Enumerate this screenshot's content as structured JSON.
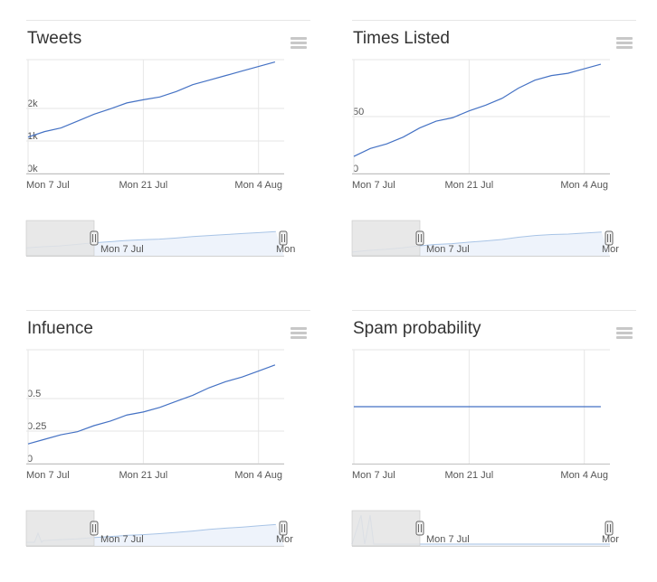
{
  "chart_data": [
    {
      "type": "line",
      "title": "Tweets",
      "x_tick_labels": [
        "Mon 7 Jul",
        "Mon 21 Jul",
        "Mon 4 Aug"
      ],
      "y_tick_labels": [
        "0k",
        "1k",
        "2k"
      ],
      "ylim": [
        0,
        2500
      ],
      "series": [
        {
          "x": [
            "2014-07-07",
            "2014-07-09",
            "2014-07-11",
            "2014-07-13",
            "2014-07-15",
            "2014-07-17",
            "2014-07-19",
            "2014-07-21",
            "2014-07-23",
            "2014-07-25",
            "2014-07-27",
            "2014-07-29",
            "2014-07-31",
            "2014-08-02",
            "2014-08-04",
            "2014-08-06"
          ],
          "y": [
            800,
            920,
            1000,
            1150,
            1300,
            1420,
            1550,
            1620,
            1680,
            1800,
            1950,
            2050,
            2150,
            2250,
            2350,
            2450
          ]
        }
      ],
      "navigator": {
        "labels": [
          "Mon 7 Jul",
          "Mon"
        ]
      }
    },
    {
      "type": "line",
      "title": "Times Listed",
      "x_tick_labels": [
        "Mon 7 Jul",
        "Mon 21 Jul",
        "Mon 4 Aug"
      ],
      "y_tick_labels": [
        "0",
        "50"
      ],
      "ylim": [
        0,
        100
      ],
      "series": [
        {
          "x": [
            "2014-07-07",
            "2014-07-09",
            "2014-07-11",
            "2014-07-13",
            "2014-07-15",
            "2014-07-17",
            "2014-07-19",
            "2014-07-21",
            "2014-07-23",
            "2014-07-25",
            "2014-07-27",
            "2014-07-29",
            "2014-07-31",
            "2014-08-02",
            "2014-08-04",
            "2014-08-06"
          ],
          "y": [
            15,
            22,
            26,
            32,
            40,
            46,
            49,
            55,
            60,
            66,
            75,
            82,
            86,
            88,
            92,
            96
          ]
        }
      ],
      "navigator": {
        "labels": [
          "Mon 7 Jul",
          "Mor"
        ]
      }
    },
    {
      "type": "line",
      "title": "Infuence",
      "x_tick_labels": [
        "Mon 7 Jul",
        "Mon 21 Jul",
        "Mon 4 Aug"
      ],
      "y_tick_labels": [
        "0",
        "0.25",
        "0.5"
      ],
      "ylim": [
        0,
        0.75
      ],
      "series": [
        {
          "x": [
            "2014-07-07",
            "2014-07-09",
            "2014-07-11",
            "2014-07-13",
            "2014-07-15",
            "2014-07-17",
            "2014-07-19",
            "2014-07-21",
            "2014-07-23",
            "2014-07-25",
            "2014-07-27",
            "2014-07-29",
            "2014-07-31",
            "2014-08-02",
            "2014-08-04",
            "2014-08-06"
          ],
          "y": [
            0.13,
            0.16,
            0.19,
            0.21,
            0.25,
            0.28,
            0.32,
            0.34,
            0.37,
            0.41,
            0.45,
            0.5,
            0.54,
            0.57,
            0.61,
            0.65
          ]
        }
      ],
      "navigator": {
        "labels": [
          "Mon 7 Jul",
          "Mor"
        ]
      }
    },
    {
      "type": "line",
      "title": "Spam probability",
      "x_tick_labels": [
        "Mon 7 Jul",
        "Mon 21 Jul",
        "Mon 4 Aug"
      ],
      "y_tick_labels": [],
      "ylim": [
        0,
        1
      ],
      "series": [
        {
          "x": [
            "2014-07-07",
            "2014-08-06"
          ],
          "y": [
            0.5,
            0.5
          ]
        }
      ],
      "navigator": {
        "labels": [
          "Mon 7 Jul",
          "Mor"
        ]
      }
    }
  ],
  "colors": {
    "line": "#4572c4",
    "navigator_line": "#a8c4e6",
    "navigator_fill": "#eef3fb",
    "grid": "#e6e6e6",
    "handle_mask": "#e4e4e4"
  },
  "icons": {
    "menu": "hamburger-menu-icon"
  }
}
